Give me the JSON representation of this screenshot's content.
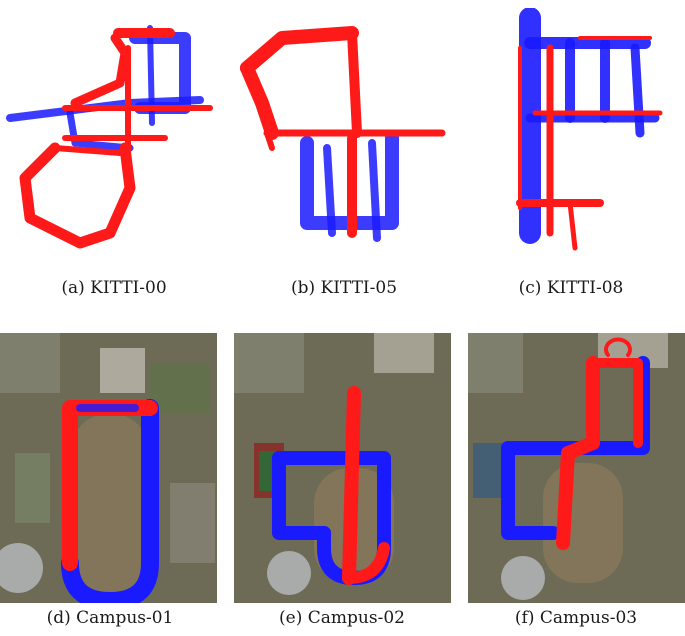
{
  "figure": {
    "panels": [
      {
        "id": "a",
        "caption": "(a) KITTI-00"
      },
      {
        "id": "b",
        "caption": "(b) KITTI-05"
      },
      {
        "id": "c",
        "caption": "(c) KITTI-08"
      },
      {
        "id": "d",
        "caption": "(d) Campus-01"
      },
      {
        "id": "e",
        "caption": "(e) Campus-02"
      },
      {
        "id": "f",
        "caption": "(f) Campus-03"
      }
    ],
    "colors": {
      "map_a": "#ff1a1a",
      "map_b": "#1a1aff",
      "satellite_base": "#6d6a55"
    }
  }
}
